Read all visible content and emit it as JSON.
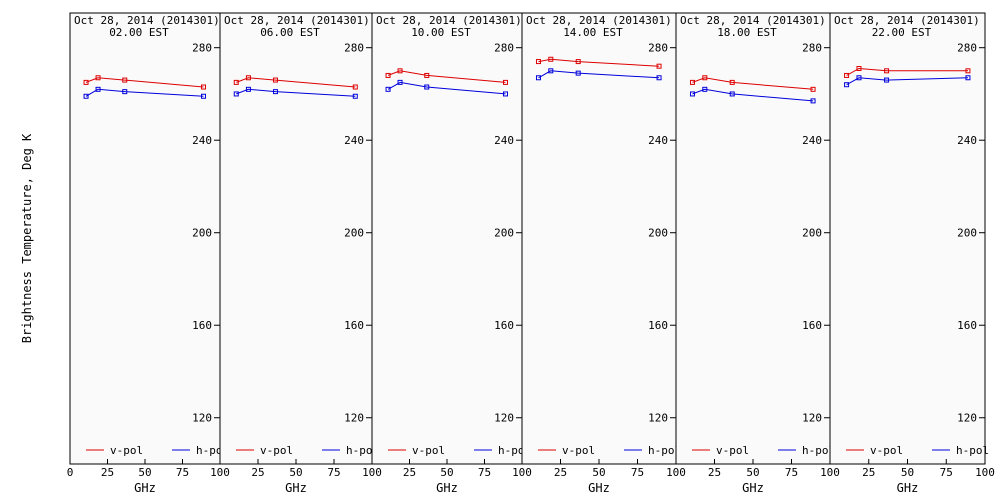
{
  "chart_data": {
    "type": "line",
    "ylabel": "Brightness Temperature, Deg K",
    "xlabel": "GHz",
    "xlim": [
      0,
      100
    ],
    "ylim": [
      100,
      295
    ],
    "yticks": [
      120,
      160,
      200,
      240,
      280
    ],
    "xticks": [
      0,
      25,
      50,
      75,
      100
    ],
    "x_tick_labels_first_panel": [
      "0",
      "25",
      "50",
      "75",
      "100"
    ],
    "x_tick_labels_other_panels": [
      "25",
      "50",
      "75",
      "100"
    ],
    "x": [
      10.7,
      18.7,
      36.5,
      89.0
    ],
    "colors": {
      "v-pol": "#dd0000",
      "h-pol": "#0000dd"
    },
    "legend": [
      "v-pol",
      "h-pol"
    ],
    "panels": [
      {
        "title_line1": "Oct 28, 2014 (2014301)",
        "title_line2": "02.00 EST",
        "series": [
          {
            "name": "v-pol",
            "values": [
              265,
              267,
              266,
              263
            ]
          },
          {
            "name": "h-pol",
            "values": [
              259,
              262,
              261,
              259
            ]
          }
        ]
      },
      {
        "title_line1": "Oct 28, 2014 (2014301)",
        "title_line2": "06.00 EST",
        "series": [
          {
            "name": "v-pol",
            "values": [
              265,
              267,
              266,
              263
            ]
          },
          {
            "name": "h-pol",
            "values": [
              260,
              262,
              261,
              259
            ]
          }
        ]
      },
      {
        "title_line1": "Oct 28, 2014 (2014301)",
        "title_line2": "10.00 EST",
        "series": [
          {
            "name": "v-pol",
            "values": [
              268,
              270,
              268,
              265
            ]
          },
          {
            "name": "h-pol",
            "values": [
              262,
              265,
              263,
              260
            ]
          }
        ]
      },
      {
        "title_line1": "Oct 28, 2014 (2014301)",
        "title_line2": "14.00 EST",
        "series": [
          {
            "name": "v-pol",
            "values": [
              274,
              275,
              274,
              272
            ]
          },
          {
            "name": "h-pol",
            "values": [
              267,
              270,
              269,
              267
            ]
          }
        ]
      },
      {
        "title_line1": "Oct 28, 2014 (2014301)",
        "title_line2": "18.00 EST",
        "series": [
          {
            "name": "v-pol",
            "values": [
              265,
              267,
              265,
              262
            ]
          },
          {
            "name": "h-pol",
            "values": [
              260,
              262,
              260,
              257
            ]
          }
        ]
      },
      {
        "title_line1": "Oct 28, 2014 (2014301)",
        "title_line2": "22.00 EST",
        "series": [
          {
            "name": "v-pol",
            "values": [
              268,
              271,
              270,
              270
            ]
          },
          {
            "name": "h-pol",
            "values": [
              264,
              267,
              266,
              267
            ]
          }
        ]
      }
    ]
  }
}
